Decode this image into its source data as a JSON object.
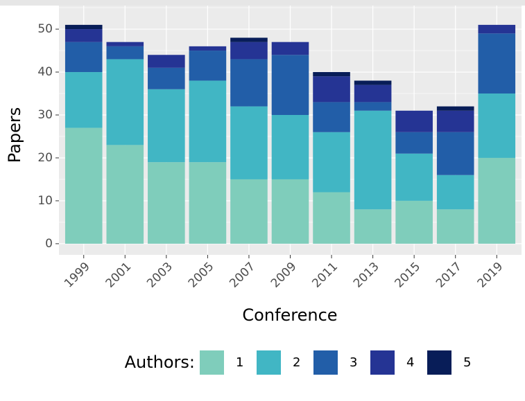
{
  "chart_data": {
    "type": "stacked_bar",
    "x_label": "Conference",
    "y_label": "Papers",
    "categories": [
      "1999",
      "2001",
      "2003",
      "2005",
      "2007",
      "2009",
      "2011",
      "2013",
      "2015",
      "2017",
      "2019"
    ],
    "legend_title": "Authors:",
    "series": [
      {
        "name": "1",
        "color": "#7fcdbb",
        "values": [
          27,
          23,
          19,
          19,
          15,
          15,
          12,
          8,
          10,
          8,
          20
        ]
      },
      {
        "name": "2",
        "color": "#41b6c4",
        "values": [
          13,
          20,
          17,
          19,
          17,
          15,
          14,
          23,
          11,
          8,
          15
        ]
      },
      {
        "name": "3",
        "color": "#225ea8",
        "values": [
          7,
          3,
          5,
          7,
          11,
          14,
          7,
          2,
          5,
          10,
          14
        ]
      },
      {
        "name": "4",
        "color": "#253494",
        "values": [
          3,
          1,
          3,
          1,
          4,
          3,
          6,
          4,
          5,
          5,
          2
        ]
      },
      {
        "name": "5",
        "color": "#081d58",
        "values": [
          1,
          0,
          0,
          0,
          1,
          0,
          1,
          1,
          0,
          1,
          0
        ]
      }
    ],
    "ylim": [
      -2.6,
      55.5
    ],
    "yticks": [
      0,
      10,
      20,
      30,
      40,
      50
    ],
    "y_minor_ticks": [
      5,
      15,
      25,
      35,
      45,
      55
    ],
    "grid": true,
    "legend_position": "bottom"
  }
}
